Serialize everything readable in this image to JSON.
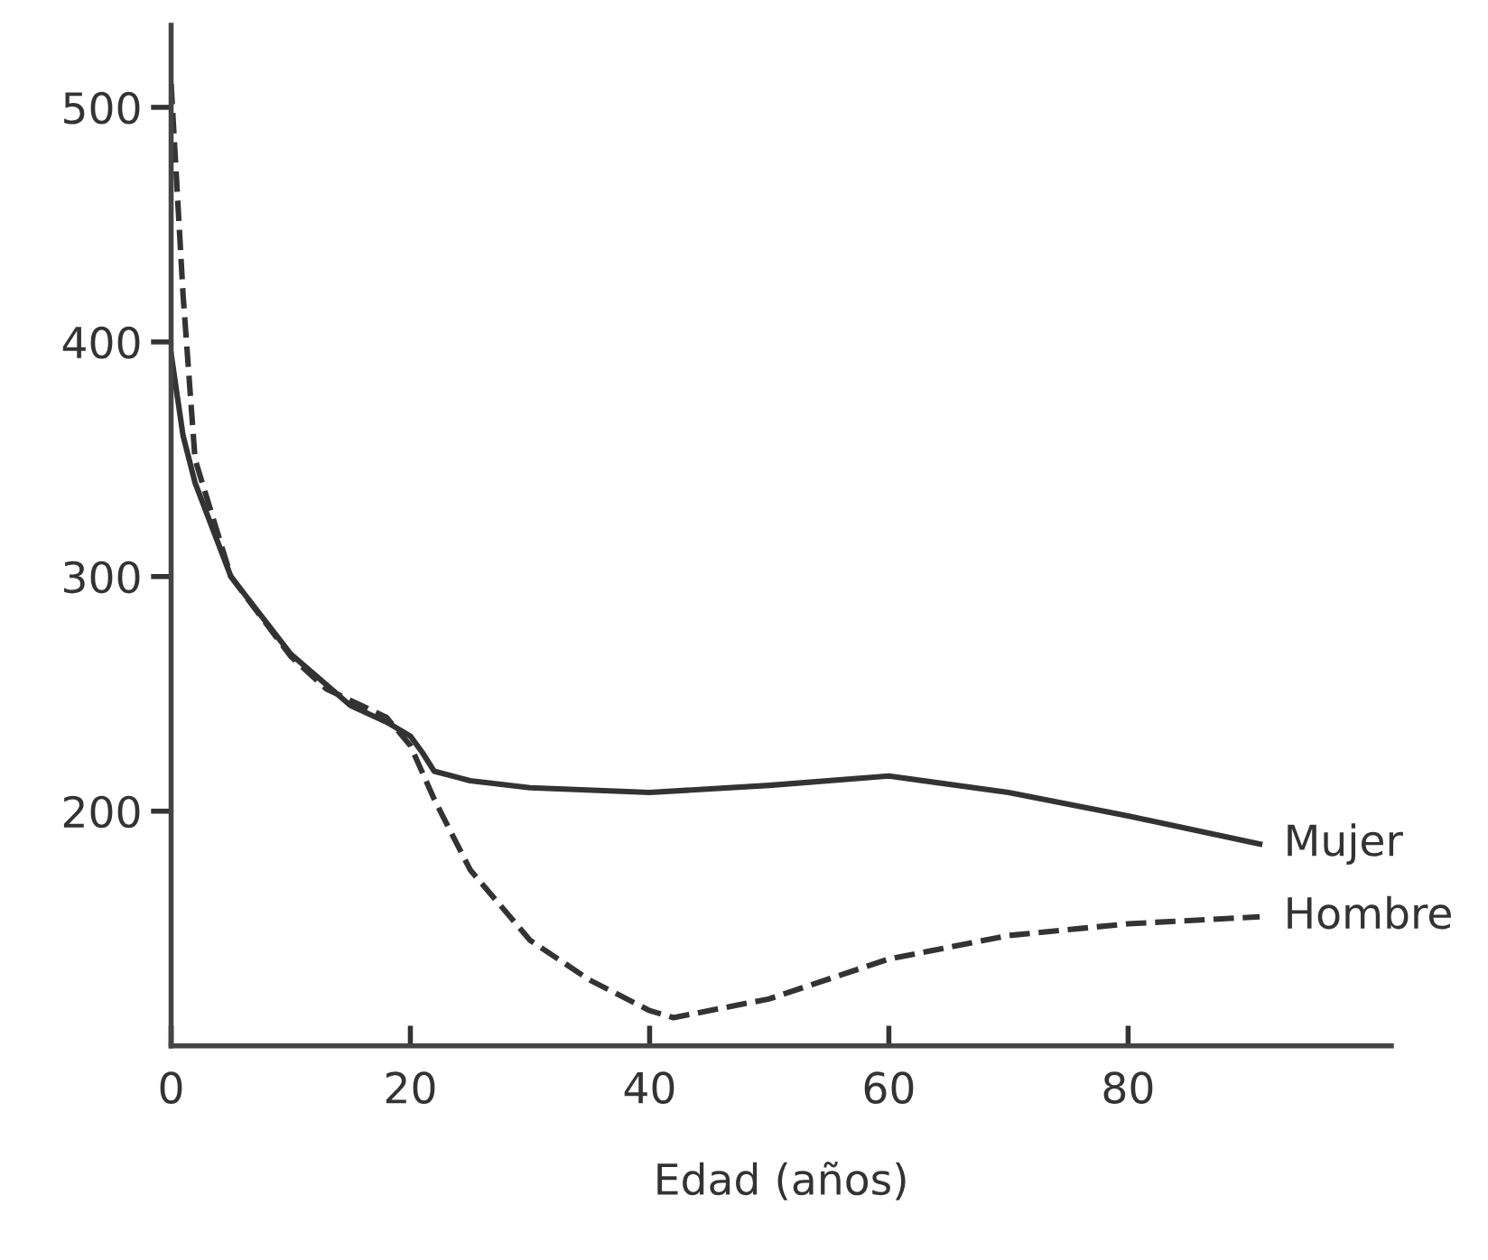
{
  "chart_data": {
    "type": "line",
    "xlabel": "Edad (años)",
    "xlim": [
      0,
      102
    ],
    "ylim": [
      100,
      535
    ],
    "xticks": [
      0,
      20,
      40,
      60,
      80
    ],
    "yticks": [
      200,
      300,
      400,
      500
    ],
    "grid": false,
    "legend": false,
    "marker": "none",
    "series": [
      {
        "name": "Mujer",
        "color": "#333333",
        "line_style": "solid",
        "x": [
          0,
          1,
          2,
          5,
          10,
          15,
          18,
          20,
          21,
          22,
          25,
          30,
          40,
          50,
          60,
          70,
          80,
          91
        ],
        "values": [
          395,
          360,
          340,
          300,
          267,
          245,
          238,
          232,
          225,
          217,
          213,
          210,
          208,
          211,
          215,
          208,
          198,
          186
        ]
      },
      {
        "name": "Hombre",
        "color": "#333333",
        "line_style": "dashed",
        "x": [
          0,
          1,
          2,
          5,
          10,
          13,
          18,
          20,
          22,
          25,
          30,
          35,
          40,
          42,
          50,
          60,
          70,
          80,
          91
        ],
        "values": [
          510,
          420,
          350,
          300,
          266,
          252,
          240,
          228,
          205,
          175,
          145,
          128,
          115,
          112,
          120,
          137,
          147,
          152,
          155
        ]
      }
    ]
  }
}
